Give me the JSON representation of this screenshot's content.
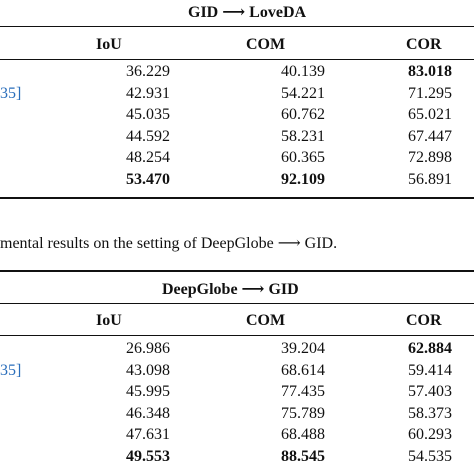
{
  "table1": {
    "setting": "GID ⟶ LoveDA",
    "columns": [
      "IoU",
      "COM",
      "COR"
    ],
    "row_labels": [
      "",
      "35]",
      "",
      "",
      "",
      ""
    ],
    "rows": [
      [
        "36.229",
        "40.139",
        "83.018"
      ],
      [
        "42.931",
        "54.221",
        "71.295"
      ],
      [
        "45.035",
        "60.762",
        "65.021"
      ],
      [
        "44.592",
        "58.231",
        "67.447"
      ],
      [
        "48.254",
        "60.365",
        "72.898"
      ],
      [
        "53.470",
        "92.109",
        "56.891"
      ]
    ],
    "bold": [
      [
        0,
        2
      ],
      [
        5,
        0
      ],
      [
        5,
        1
      ]
    ]
  },
  "caption2": "mental results on the setting of DeepGlobe ⟶ GID.",
  "table2": {
    "setting": "DeepGlobe ⟶ GID",
    "columns": [
      "IoU",
      "COM",
      "COR"
    ],
    "row_labels": [
      "",
      "35]",
      "",
      "",
      "",
      ""
    ],
    "rows": [
      [
        "26.986",
        "39.204",
        "62.884"
      ],
      [
        "43.098",
        "68.614",
        "59.414"
      ],
      [
        "45.995",
        "77.435",
        "57.403"
      ],
      [
        "46.348",
        "75.789",
        "58.373"
      ],
      [
        "47.631",
        "68.488",
        "60.293"
      ],
      [
        "49.553",
        "88.545",
        "54.535"
      ]
    ],
    "bold": [
      [
        0,
        2
      ],
      [
        5,
        0
      ],
      [
        5,
        1
      ]
    ]
  }
}
